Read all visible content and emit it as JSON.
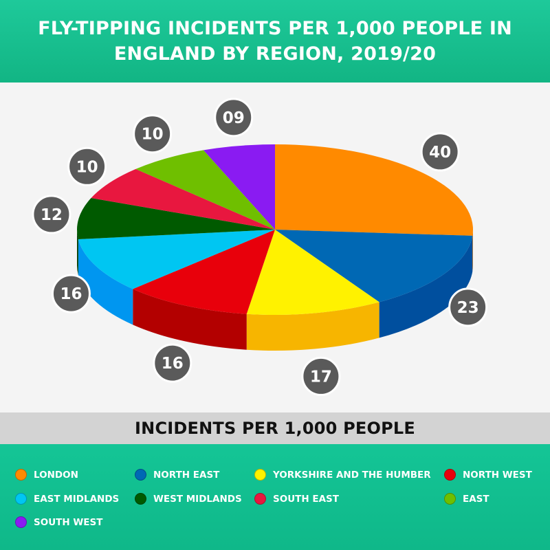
{
  "title": "FLY-TIPPING INCIDENTS PER 1,000 PEOPLE IN ENGLAND BY REGION, 2019/20",
  "subtitle": "INCIDENTS PER 1,000 PEOPLE",
  "chart_data": {
    "type": "pie",
    "title": "FLY-TIPPING INCIDENTS PER 1,000 PEOPLE IN ENGLAND BY REGION, 2019/20",
    "subtitle": "INCIDENTS PER 1,000 PEOPLE",
    "style": "3d",
    "categories": [
      "LONDON",
      "NORTH EAST",
      "YORKSHIRE AND THE HUMBER",
      "NORTH WEST",
      "EAST MIDLANDS",
      "WEST MIDLANDS",
      "SOUTH EAST",
      "EAST",
      "SOUTH WEST"
    ],
    "values": [
      40,
      23,
      17,
      16,
      16,
      12,
      10,
      10,
      9
    ],
    "labels": [
      "40",
      "23",
      "17",
      "16",
      "16",
      "12",
      "10",
      "10",
      "09"
    ],
    "colors": [
      "#ff8a00",
      "#0068b4",
      "#fff200",
      "#e8000b",
      "#00c6f2",
      "#005a00",
      "#e8173f",
      "#6fbf00",
      "#8a1bf2"
    ],
    "side_colors": [
      "#e67600",
      "#004f9e",
      "#f7b500",
      "#b30000",
      "#0096f0",
      "#003c00",
      "#b0102d",
      "#4f9000",
      "#6a10c0"
    ],
    "label_badge_color": "#5a5a5a",
    "legend_position": "bottom"
  },
  "legend": [
    {
      "label": "LONDON",
      "color": "#ff8a00"
    },
    {
      "label": "NORTH EAST",
      "color": "#0068b4"
    },
    {
      "label": "YORKSHIRE AND THE HUMBER",
      "color": "#fff200"
    },
    {
      "label": "NORTH WEST",
      "color": "#e8000b"
    },
    {
      "label": "EAST MIDLANDS",
      "color": "#00c6f2"
    },
    {
      "label": "WEST MIDLANDS",
      "color": "#005a00"
    },
    {
      "label": "SOUTH EAST",
      "color": "#e8173f"
    },
    {
      "label": "EAST",
      "color": "#6fbf00"
    },
    {
      "label": "SOUTH WEST",
      "color": "#8a1bf2"
    }
  ],
  "colors": {
    "header_bg": "#14bf8f",
    "subtitle_bg": "#d3d3d3",
    "legend_bg": "#12bf8f"
  }
}
